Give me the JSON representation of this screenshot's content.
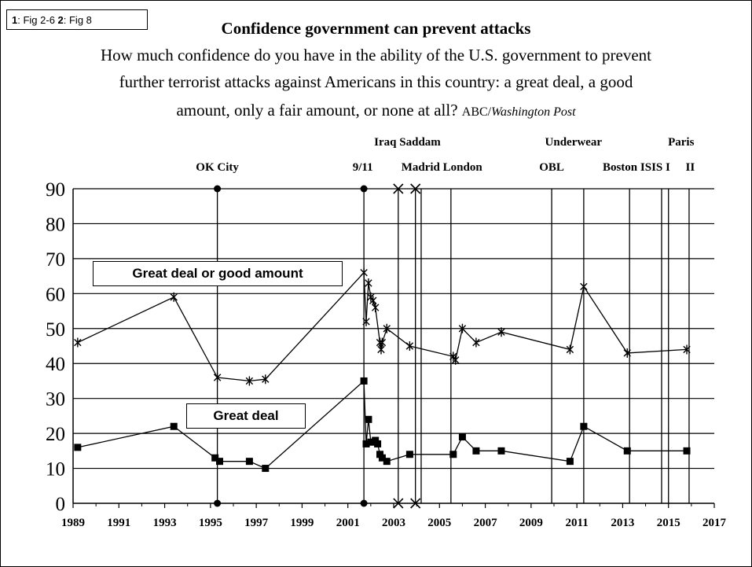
{
  "figure_tag": {
    "part1_num": "1",
    "part1_text": ": Fig 2-6 ",
    "part2_num": "2",
    "part2_text": ": Fig 8"
  },
  "header": {
    "title": "Confidence government can prevent attacks",
    "subtitle_line1": "How much confidence do you have in the ability of the U.S. government to prevent",
    "subtitle_line2": "further terrorist attacks against Americans in this country: a great deal, a good",
    "subtitle_line3": "amount, only a fair amount, or none at all?",
    "source_abc": "ABC/",
    "source_wp": "Washington Post"
  },
  "chart_data": {
    "type": "line",
    "xlim": [
      1989,
      2017
    ],
    "ylim": [
      0,
      90
    ],
    "x_ticks": [
      "1989",
      "1991",
      "1993",
      "1995",
      "1997",
      "1999",
      "2001",
      "2003",
      "2005",
      "2007",
      "2009",
      "2011",
      "2013",
      "2015",
      "2017"
    ],
    "y_ticks": [
      "0",
      "10",
      "20",
      "30",
      "40",
      "50",
      "60",
      "70",
      "80",
      "90"
    ],
    "grid": true,
    "series": [
      {
        "name": "Great deal or good amount",
        "marker": "asterisk",
        "points": [
          [
            1989.2,
            46
          ],
          [
            1993.4,
            59
          ],
          [
            1995.3,
            36
          ],
          [
            1996.7,
            35
          ],
          [
            1997.4,
            35.5
          ],
          [
            2001.7,
            66
          ],
          [
            2001.8,
            52
          ],
          [
            2001.9,
            63
          ],
          [
            2002.0,
            59
          ],
          [
            2002.1,
            58
          ],
          [
            2002.2,
            56
          ],
          [
            2002.4,
            46
          ],
          [
            2002.45,
            44
          ],
          [
            2002.5,
            46
          ],
          [
            2002.7,
            50
          ],
          [
            2003.7,
            45
          ],
          [
            2005.6,
            42
          ],
          [
            2005.7,
            41
          ],
          [
            2006.0,
            50
          ],
          [
            2006.6,
            46
          ],
          [
            2007.7,
            49
          ],
          [
            2010.7,
            44
          ],
          [
            2011.3,
            62
          ],
          [
            2013.2,
            43
          ],
          [
            2015.8,
            44
          ]
        ]
      },
      {
        "name": "Great deal",
        "marker": "square",
        "points": [
          [
            1989.2,
            16
          ],
          [
            1993.4,
            22
          ],
          [
            1995.2,
            13
          ],
          [
            1995.4,
            12
          ],
          [
            1996.7,
            12
          ],
          [
            1997.4,
            10
          ],
          [
            2001.7,
            35
          ],
          [
            2001.8,
            17
          ],
          [
            2001.9,
            24
          ],
          [
            2002.0,
            17.5
          ],
          [
            2002.2,
            18
          ],
          [
            2002.3,
            17
          ],
          [
            2002.4,
            14
          ],
          [
            2002.5,
            13
          ],
          [
            2002.7,
            12
          ],
          [
            2003.7,
            14
          ],
          [
            2005.6,
            14
          ],
          [
            2006.0,
            19
          ],
          [
            2006.6,
            15
          ],
          [
            2007.7,
            15
          ],
          [
            2010.7,
            12
          ],
          [
            2011.3,
            22
          ],
          [
            2013.2,
            15
          ],
          [
            2015.8,
            15
          ]
        ]
      }
    ],
    "events": [
      {
        "label": "OK City",
        "x": 1995.3,
        "row": 2,
        "marker": "dot"
      },
      {
        "label": "9/11",
        "x": 2001.7,
        "row": 2,
        "marker": "dot"
      },
      {
        "label": "Iraq",
        "x": 2003.2,
        "row": 1,
        "marker": "x"
      },
      {
        "label": "Saddam",
        "x": 2003.95,
        "row": 1,
        "marker": "x"
      },
      {
        "label": "Madrid",
        "x": 2004.2,
        "row": 2,
        "marker": "none"
      },
      {
        "label": "London",
        "x": 2005.5,
        "row": 2,
        "marker": "none"
      },
      {
        "label": "Underwear",
        "x": 2009.9,
        "row": 1,
        "marker": "none"
      },
      {
        "label": "OBL",
        "x": 2011.3,
        "row": 2,
        "marker": "none"
      },
      {
        "label": "Boston",
        "x": 2013.3,
        "row": 2,
        "marker": "none"
      },
      {
        "label": "ISIS I",
        "x": 2014.7,
        "row": 2,
        "marker": "none"
      },
      {
        "label": "Paris",
        "x": 2015.0,
        "row": 1,
        "marker": "none"
      },
      {
        "label": "II",
        "x": 2015.9,
        "row": 2,
        "marker": "none"
      }
    ],
    "legend": [
      "Great deal or good amount",
      "Great deal"
    ],
    "event_labels": [
      {
        "text": "OK City",
        "row": 2,
        "x": 1995.3
      },
      {
        "text": "9/11",
        "row": 2,
        "x": 2001.65
      },
      {
        "text": "Iraq Saddam",
        "row": 1,
        "x": 2003.6
      },
      {
        "text": "Madrid London",
        "row": 2,
        "x": 2005.1
      },
      {
        "text": "Underwear",
        "row": 1,
        "x": 2010.85
      },
      {
        "text": "OBL",
        "row": 2,
        "x": 2009.9
      },
      {
        "text": "Boston ISIS I",
        "row": 2,
        "x": 2013.6
      },
      {
        "text": "Paris",
        "row": 1,
        "x": 2015.55
      },
      {
        "text": "II",
        "row": 2,
        "x": 2015.95
      }
    ]
  }
}
